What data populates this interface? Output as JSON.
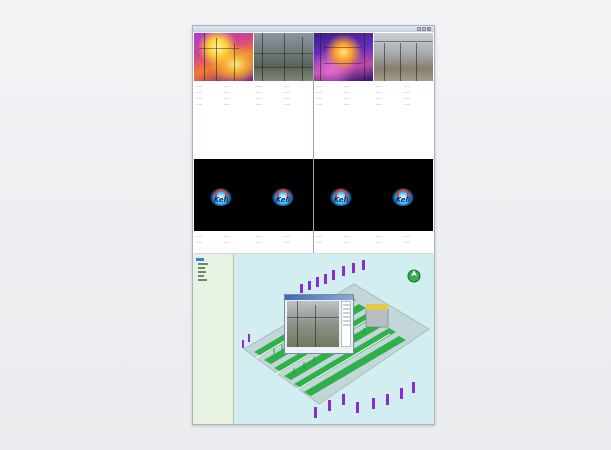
{
  "window": {
    "title": "",
    "camera_panels": [
      {
        "name": "thermal-camera-1",
        "kind": "thermal"
      },
      {
        "name": "visible-camera-1",
        "kind": "visible"
      },
      {
        "name": "thermal-camera-2",
        "kind": "thermal"
      },
      {
        "name": "visible-camera-2",
        "kind": "visible"
      }
    ],
    "logo_text": "Keli",
    "logo_count": 4
  },
  "colors": {
    "map_background": "#d3eef1",
    "tree_background": "#e8f2e2",
    "vegetation": "#2fb04a",
    "equipment_markers": "#8a2bd6"
  },
  "icons": [
    "minimize-icon",
    "maximize-icon",
    "close-icon",
    "compass-icon",
    "tree-node-icon"
  ]
}
